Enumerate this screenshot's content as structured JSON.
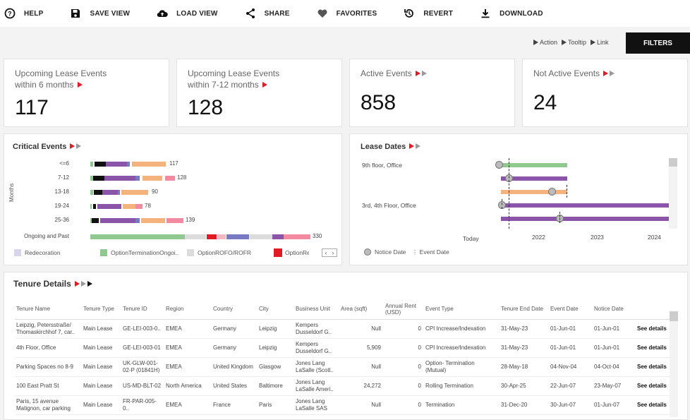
{
  "toolbar": {
    "items": [
      {
        "label": "HELP",
        "icon": "help-icon"
      },
      {
        "label": "SAVE VIEW",
        "icon": "save-icon"
      },
      {
        "label": "LOAD VIEW",
        "icon": "cloud-upload-icon"
      },
      {
        "label": "SHARE",
        "icon": "share-icon"
      },
      {
        "label": "FAVORITES",
        "icon": "heart-icon"
      },
      {
        "label": "REVERT",
        "icon": "revert-icon"
      },
      {
        "label": "DOWNLOAD",
        "icon": "download-icon"
      }
    ]
  },
  "legend": {
    "action": "Action",
    "tooltip": "Tooltip",
    "link": "Link"
  },
  "filters_label": "FILTERS",
  "kpis": [
    {
      "title_line1": "Upcoming Lease Events",
      "title_line2": "within 6 months",
      "value": "117"
    },
    {
      "title_line1": "Upcoming Lease Events",
      "title_line2": "within 7-12 months",
      "value": "128"
    },
    {
      "title_line1": "Active Events",
      "title_line2": "",
      "value": "858"
    },
    {
      "title_line1": "Not Active Events",
      "title_line2": "",
      "value": "24"
    }
  ],
  "critical_events": {
    "title": "Critical Events",
    "axis_label": "Months",
    "rows": [
      {
        "label": "<=6",
        "value": "117"
      },
      {
        "label": "7-12",
        "value": "128"
      },
      {
        "label": "13-18",
        "value": "90"
      },
      {
        "label": "19-24",
        "value": "78"
      },
      {
        "label": "25-36",
        "value": "139"
      },
      {
        "label": "Ongoing and Past",
        "value": "330"
      }
    ],
    "legend": [
      "Redecoration",
      "OptionTerminationOngoi..",
      "OptionROFO/ROFR",
      "OptionRel"
    ],
    "colors": {
      "green": "#8fc98f",
      "black": "#111111",
      "purple": "#8a55a8",
      "orange": "#f4b27c",
      "lavender": "#d9d4ea",
      "red": "#e01b24",
      "pink": "#f28ba0",
      "lightgray": "#dcdcdc",
      "blue": "#7a79c4"
    }
  },
  "lease_dates": {
    "title": "Lease Dates",
    "rows": [
      "9th floor, Office",
      "3rd, 4th Floor, Office"
    ],
    "axis": {
      "today": "Today",
      "ticks": [
        "2022",
        "2023",
        "2024"
      ]
    },
    "legend": {
      "notice": "Notice Date",
      "event": "Event Date"
    }
  },
  "tenure": {
    "title": "Tenure Details",
    "columns": [
      "Tenure Name",
      "Tenure Type",
      "Tenure ID",
      "Region",
      "Country",
      "City",
      "Business Unit",
      "Area (sqft)",
      "Annual Rent (USD)",
      "Event Type",
      "Tenure End Date",
      "Event Date",
      "Notice Date",
      ""
    ],
    "rows": [
      [
        "Leipzig, Petersstraße/ Thomaskirchhof 7, car..",
        "Main Lease",
        "GE-LEI-003-0..",
        "EMEA",
        "Germany",
        "Leipzig",
        "Kempers Dusseldorf G..",
        "Null",
        "0",
        "CPI Increase/Indexation",
        "31-May-23",
        "01-Jun-01",
        "01-Jun-01",
        "See details"
      ],
      [
        "4th Floor, Office",
        "Main Lease",
        "GE-LEI-003-01",
        "EMEA",
        "Germany",
        "Leipzig",
        "Kempers Dusseldorf G..",
        "5,909",
        "0",
        "CPI Increase/Indexation",
        "31-May-23",
        "01-Jun-01",
        "01-Jun-01",
        "See details"
      ],
      [
        "Parking Spaces no 8-9",
        "Main Lease",
        "UK-GLW-001-02-P (01841H)",
        "EMEA",
        "United Kingdom",
        "Glasgow",
        "Jones Lang LaSalle (Scotl..",
        "Null",
        "0",
        "Option- Termination (Mutual)",
        "28-May-18",
        "04-Nov-04",
        "04-Oct-04",
        "See details"
      ],
      [
        "100 East Pratt St",
        "Main Lease",
        "US-MD-BLT-02",
        "North America",
        "United States",
        "Baltimore",
        "Jones Lang LaSalle Ameri..",
        "24,272",
        "0",
        "Rolling Termination",
        "30-Apr-25",
        "22-Jun-07",
        "23-May-07",
        "See details"
      ],
      [
        "Paris, 15 avenue Matignon, car parking",
        "Main Lease",
        "FR-PAR-005-0..",
        "EMEA",
        "France",
        "Paris",
        "Jones Lang LaSalle SAS",
        "Null",
        "0",
        "Termination",
        "31-Dec-20",
        "30-Jun-07",
        "01-Jun-07",
        "See details"
      ]
    ]
  }
}
